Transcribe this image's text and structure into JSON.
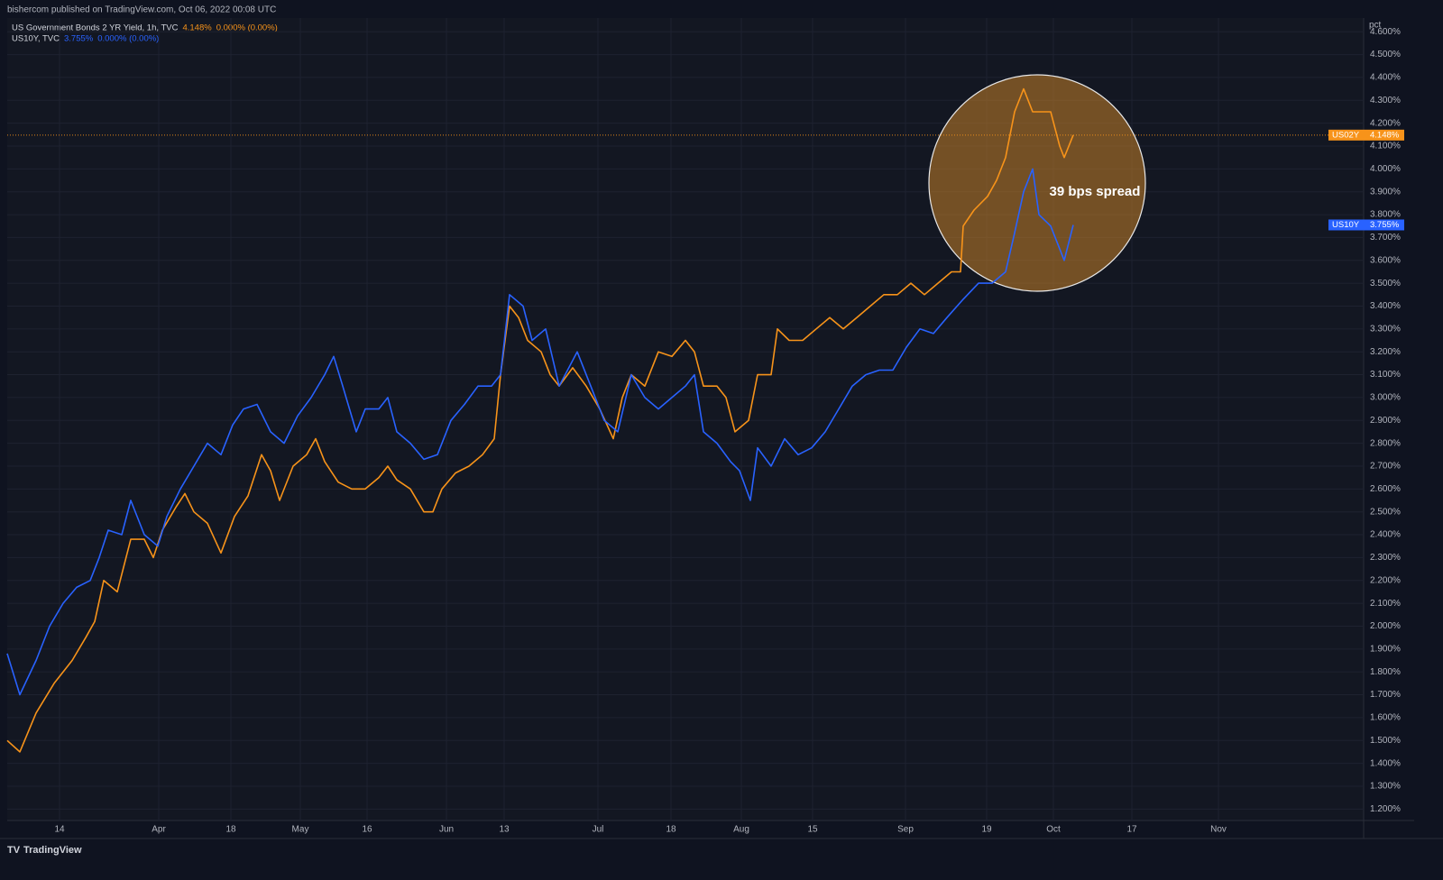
{
  "chart_data": {
    "type": "line",
    "header": "bishercom published on TradingView.com, Oct 06, 2022 00:08 UTC",
    "y_axis_label": "pct",
    "annotation": "39 bps spread",
    "footer": "TradingView",
    "grid": true,
    "xlim": [
      0,
      376
    ],
    "xticks": [
      {
        "value": 14.5,
        "label": "14"
      },
      {
        "value": 42,
        "label": "Apr"
      },
      {
        "value": 62,
        "label": "18"
      },
      {
        "value": 81.25,
        "label": "May"
      },
      {
        "value": 99.75,
        "label": "16"
      },
      {
        "value": 121.75,
        "label": "Jun"
      },
      {
        "value": 137.75,
        "label": "13"
      },
      {
        "value": 163.75,
        "label": "Jul"
      },
      {
        "value": 184,
        "label": "18"
      },
      {
        "value": 203.5,
        "label": "Aug"
      },
      {
        "value": 223.25,
        "label": "15"
      },
      {
        "value": 249,
        "label": "Sep"
      },
      {
        "value": 271.5,
        "label": "19"
      },
      {
        "value": 290,
        "label": "Oct"
      },
      {
        "value": 311.75,
        "label": "17"
      },
      {
        "value": 335.75,
        "label": "Nov"
      }
    ],
    "ylim": [
      1.15,
      4.66
    ],
    "yticks": [
      {
        "value": 1.2,
        "label": "1.200%"
      },
      {
        "value": 1.3,
        "label": "1.300%"
      },
      {
        "value": 1.4,
        "label": "1.400%"
      },
      {
        "value": 1.5,
        "label": "1.500%"
      },
      {
        "value": 1.6,
        "label": "1.600%"
      },
      {
        "value": 1.7,
        "label": "1.700%"
      },
      {
        "value": 1.8,
        "label": "1.800%"
      },
      {
        "value": 1.9,
        "label": "1.900%"
      },
      {
        "value": 2.0,
        "label": "2.000%"
      },
      {
        "value": 2.1,
        "label": "2.100%"
      },
      {
        "value": 2.2,
        "label": "2.200%"
      },
      {
        "value": 2.3,
        "label": "2.300%"
      },
      {
        "value": 2.4,
        "label": "2.400%"
      },
      {
        "value": 2.5,
        "label": "2.500%"
      },
      {
        "value": 2.6,
        "label": "2.600%"
      },
      {
        "value": 2.7,
        "label": "2.700%"
      },
      {
        "value": 2.8,
        "label": "2.800%"
      },
      {
        "value": 2.9,
        "label": "2.900%"
      },
      {
        "value": 3.0,
        "label": "3.000%"
      },
      {
        "value": 3.1,
        "label": "3.100%"
      },
      {
        "value": 3.2,
        "label": "3.200%"
      },
      {
        "value": 3.3,
        "label": "3.300%"
      },
      {
        "value": 3.4,
        "label": "3.400%"
      },
      {
        "value": 3.5,
        "label": "3.500%"
      },
      {
        "value": 3.6,
        "label": "3.600%"
      },
      {
        "value": 3.7,
        "label": "3.700%"
      },
      {
        "value": 3.8,
        "label": "3.800%"
      },
      {
        "value": 3.9,
        "label": "3.900%"
      },
      {
        "value": 4.0,
        "label": "4.000%"
      },
      {
        "value": 4.1,
        "label": "4.100%"
      },
      {
        "value": 4.2,
        "label": "4.200%"
      },
      {
        "value": 4.3,
        "label": "4.300%"
      },
      {
        "value": 4.4,
        "label": "4.400%"
      },
      {
        "value": 4.5,
        "label": "4.500%"
      },
      {
        "value": 4.6,
        "label": "4.600%"
      }
    ],
    "series": [
      {
        "name": "US Government Bonds 2 YR Yield, 1h, TVC",
        "symbol": "US02Y",
        "color": "#f7931a",
        "last_label": "4.148%",
        "change_label": "0.000% (0.00%)",
        "x": [
          0,
          3.5,
          8,
          13,
          18,
          21.75,
          24.25,
          26.75,
          30.5,
          34.25,
          38,
          40.5,
          43,
          46.75,
          49.25,
          51.75,
          55.5,
          59.25,
          63,
          66.75,
          70.5,
          73,
          75.5,
          79.25,
          83,
          85.5,
          88,
          91.75,
          95.5,
          99.25,
          103,
          105.5,
          108,
          111.75,
          115.5,
          118,
          120.5,
          124.25,
          128,
          131.75,
          135,
          136.75,
          139.25,
          141.75,
          144.25,
          148,
          150.5,
          153,
          156.75,
          160.5,
          164.25,
          168,
          170.5,
          173,
          176.75,
          180.5,
          184.25,
          188,
          190.5,
          193,
          196.75,
          199.25,
          201.75,
          205.5,
          208,
          211.75,
          213.5,
          216.75,
          220.5,
          224.25,
          228,
          231.75,
          235.5,
          239.25,
          243,
          246.75,
          250.5,
          254.25,
          258,
          261.75,
          264.25,
          265,
          268,
          271.75,
          274.25,
          276.75,
          279.25,
          281.75,
          284.25,
          286.75,
          289.25,
          291.75,
          293,
          295.5
        ],
        "values": [
          1.5,
          1.45,
          1.62,
          1.75,
          1.85,
          1.95,
          2.02,
          2.2,
          2.15,
          2.38,
          2.38,
          2.3,
          2.42,
          2.52,
          2.58,
          2.5,
          2.45,
          2.32,
          2.48,
          2.57,
          2.75,
          2.68,
          2.55,
          2.7,
          2.75,
          2.82,
          2.72,
          2.63,
          2.6,
          2.6,
          2.65,
          2.7,
          2.64,
          2.6,
          2.5,
          2.5,
          2.6,
          2.67,
          2.7,
          2.75,
          2.82,
          3.1,
          3.4,
          3.35,
          3.25,
          3.2,
          3.1,
          3.05,
          3.13,
          3.05,
          2.95,
          2.82,
          3.0,
          3.1,
          3.05,
          3.2,
          3.18,
          3.25,
          3.2,
          3.05,
          3.05,
          3.0,
          2.85,
          2.9,
          3.1,
          3.1,
          3.3,
          3.25,
          3.25,
          3.3,
          3.35,
          3.3,
          3.35,
          3.4,
          3.45,
          3.45,
          3.5,
          3.45,
          3.5,
          3.55,
          3.55,
          3.75,
          3.82,
          3.88,
          3.95,
          4.05,
          4.25,
          4.35,
          4.25,
          4.25,
          4.25,
          4.1,
          4.05,
          4.148
        ]
      },
      {
        "name": "US10Y, TVC",
        "symbol": "US10Y",
        "color": "#2962ff",
        "last_label": "3.755%",
        "change_label": "0.000% (0.00%)",
        "x": [
          0,
          3.5,
          8,
          11.75,
          15.5,
          19.25,
          23,
          25.5,
          28,
          31.75,
          34.25,
          38,
          41.75,
          44.25,
          48,
          51.75,
          55.5,
          59.25,
          62.5,
          65.5,
          69.25,
          73,
          76.75,
          80.5,
          84.25,
          88,
          90.5,
          93,
          96.75,
          99.25,
          103,
          105.5,
          108,
          111.75,
          115.5,
          119.25,
          123,
          126.75,
          130.5,
          134.25,
          136.75,
          139.25,
          143,
          145.5,
          149.25,
          153,
          158,
          161.75,
          165.5,
          169.25,
          173,
          176.75,
          180.5,
          184.25,
          188,
          190.5,
          193,
          196.75,
          200.5,
          203,
          206,
          208,
          211.75,
          215.5,
          219.25,
          223,
          226.75,
          230.5,
          234.25,
          238,
          241.75,
          245.5,
          249.25,
          253,
          256.75,
          260.5,
          265,
          269.25,
          273,
          276.75,
          279.25,
          281.75,
          284.25,
          286,
          289.25,
          291.75,
          293,
          295.5
        ],
        "values": [
          1.88,
          1.7,
          1.85,
          2.0,
          2.1,
          2.17,
          2.2,
          2.3,
          2.42,
          2.4,
          2.55,
          2.4,
          2.35,
          2.48,
          2.6,
          2.7,
          2.8,
          2.75,
          2.88,
          2.95,
          2.97,
          2.85,
          2.8,
          2.92,
          3.0,
          3.1,
          3.18,
          3.05,
          2.85,
          2.95,
          2.95,
          3.0,
          2.85,
          2.8,
          2.73,
          2.75,
          2.9,
          2.97,
          3.05,
          3.05,
          3.1,
          3.45,
          3.4,
          3.25,
          3.3,
          3.05,
          3.2,
          3.05,
          2.9,
          2.85,
          3.1,
          3.0,
          2.95,
          3.0,
          3.05,
          3.1,
          2.85,
          2.8,
          2.72,
          2.68,
          2.55,
          2.78,
          2.7,
          2.82,
          2.75,
          2.78,
          2.85,
          2.95,
          3.05,
          3.1,
          3.12,
          3.12,
          3.22,
          3.3,
          3.28,
          3.35,
          3.43,
          3.5,
          3.5,
          3.55,
          3.72,
          3.9,
          4.0,
          3.8,
          3.75,
          3.65,
          3.6,
          3.755
        ]
      }
    ]
  }
}
